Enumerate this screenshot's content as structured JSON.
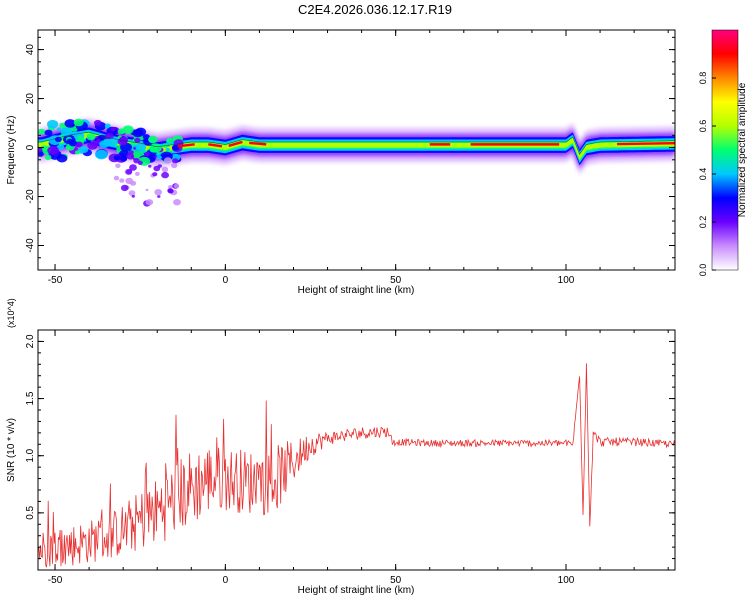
{
  "figure": {
    "title": "C2E4.2026.036.12.17.R19"
  },
  "chart_data": [
    {
      "type": "heatmap",
      "xlabel": "Height of straight line (km)",
      "ylabel": "Frequency (Hz)",
      "xlim": [
        -55,
        132
      ],
      "ylim": [
        -50,
        48
      ],
      "xticks": [
        -50,
        0,
        50,
        100
      ],
      "yticks": [
        -40,
        -20,
        0,
        20,
        40
      ],
      "colorbar": {
        "label": "Normalized spectral amplitude",
        "range": [
          0,
          1
        ],
        "ticks": [
          "0.0",
          "0.2",
          "0.4",
          "0.6",
          "0.8"
        ],
        "colors": [
          "#ffffff",
          "#c98cff",
          "#6a00ff",
          "#0000ff",
          "#00c8ff",
          "#00ff70",
          "#b4ff00",
          "#ffff00",
          "#ff8800",
          "#ff0000",
          "#ff0080"
        ]
      },
      "ridge": [
        [
          -54,
          1.0
        ],
        [
          -45,
          4.0
        ],
        [
          -40,
          5.0
        ],
        [
          -35,
          3.0
        ],
        [
          -30,
          1.5
        ],
        [
          -25,
          0.5
        ],
        [
          -20,
          -1.0
        ],
        [
          -15,
          0.0
        ],
        [
          -10,
          1.0
        ],
        [
          -5,
          1.0
        ],
        [
          0,
          0.0
        ],
        [
          5,
          2.0
        ],
        [
          10,
          1.0
        ],
        [
          20,
          1.0
        ],
        [
          40,
          1.0
        ],
        [
          60,
          1.0
        ],
        [
          80,
          1.0
        ],
        [
          100,
          1.0
        ],
        [
          102,
          3.0
        ],
        [
          104,
          -4.0
        ],
        [
          106,
          0.0
        ],
        [
          110,
          1.0
        ],
        [
          132,
          1.5
        ]
      ]
    },
    {
      "type": "line",
      "xlabel": "Height of straight line (km)",
      "ylabel": "SNR (10 * v/v)",
      "yexponent": "(x10^4)",
      "xlim": [
        -55,
        132
      ],
      "ylim": [
        0.0,
        2.1
      ],
      "xticks": [
        -50,
        0,
        50,
        100
      ],
      "yticks": [
        "0.5",
        "1.0",
        "1.5",
        "2.0"
      ],
      "series": [
        {
          "color": "#e83030",
          "profile": [
            [
              -55,
              0.18
            ],
            [
              -45,
              0.22
            ],
            [
              -35,
              0.28
            ],
            [
              -28,
              0.38
            ],
            [
              -20,
              0.52
            ],
            [
              -15,
              0.62
            ],
            [
              -10,
              0.72
            ],
            [
              -5,
              0.8
            ],
            [
              0,
              0.8
            ],
            [
              5,
              0.78
            ],
            [
              10,
              0.76
            ],
            [
              15,
              0.8
            ],
            [
              20,
              0.95
            ],
            [
              25,
              1.1
            ],
            [
              30,
              1.15
            ],
            [
              35,
              1.18
            ],
            [
              40,
              1.2
            ],
            [
              45,
              1.21
            ],
            [
              48,
              1.21
            ],
            [
              49,
              1.12
            ],
            [
              60,
              1.11
            ],
            [
              80,
              1.11
            ],
            [
              100,
              1.11
            ],
            [
              102,
              1.1
            ],
            [
              104,
              1.7
            ],
            [
              105,
              0.5
            ],
            [
              106,
              1.8
            ],
            [
              107,
              0.4
            ],
            [
              108,
              1.2
            ],
            [
              110,
              1.12
            ],
            [
              120,
              1.12
            ],
            [
              132,
              1.1
            ]
          ],
          "noise": [
            [
              -55,
              0.18
            ],
            [
              -35,
              0.2
            ],
            [
              -20,
              0.3
            ],
            [
              -10,
              0.35
            ],
            [
              0,
              0.28
            ],
            [
              15,
              0.3
            ],
            [
              22,
              0.15
            ],
            [
              30,
              0.06
            ],
            [
              48,
              0.05
            ],
            [
              50,
              0.03
            ],
            [
              100,
              0.03
            ],
            [
              110,
              0.04
            ],
            [
              132,
              0.03
            ]
          ]
        }
      ]
    }
  ]
}
